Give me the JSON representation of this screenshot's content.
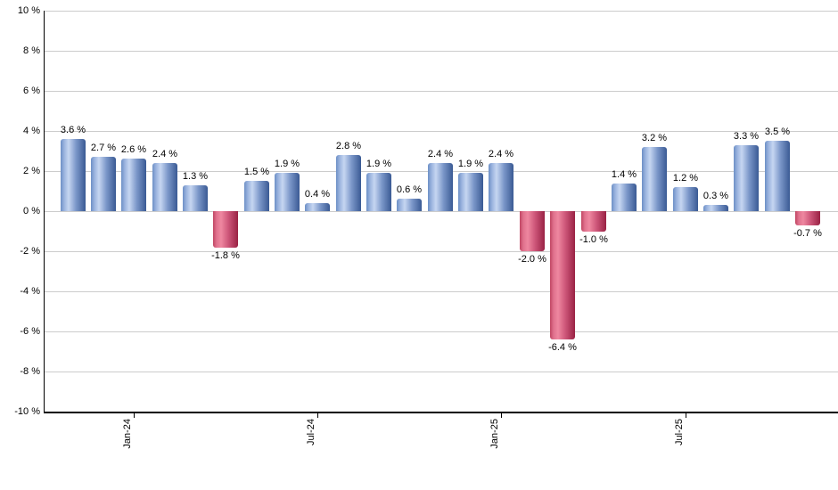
{
  "chart_data": {
    "type": "bar",
    "title": "",
    "xlabel": "",
    "ylabel": "",
    "ylim": [
      -10,
      10
    ],
    "grid": true,
    "legend": false,
    "y_ticks": [
      10,
      8,
      6,
      4,
      2,
      0,
      -2,
      -4,
      -6,
      -8,
      -10
    ],
    "y_tick_suffix": " %",
    "values": [
      3.6,
      2.7,
      2.6,
      2.4,
      1.3,
      -1.8,
      1.5,
      1.9,
      0.4,
      2.8,
      1.9,
      0.6,
      2.4,
      1.9,
      2.4,
      -2.0,
      -6.4,
      -1.0,
      1.4,
      3.2,
      1.2,
      0.3,
      3.3,
      3.5,
      -0.7
    ],
    "bar_labels": [
      "3.6 %",
      "2.7 %",
      "2.6 %",
      "2.4 %",
      "1.3 %",
      "-1.8 %",
      "1.5 %",
      "1.9 %",
      "0.4 %",
      "2.8 %",
      "1.9 %",
      "0.6 %",
      "2.4 %",
      "1.9 %",
      "2.4 %",
      "-2.0 %",
      "-6.4 %",
      "-1.0 %",
      "1.4 %",
      "3.2 %",
      "1.2 %",
      "0.3 %",
      "3.3 %",
      "3.5 %",
      "-0.7 %"
    ],
    "x_tick_labels": [
      {
        "index": 2,
        "label": "Jan-24"
      },
      {
        "index": 8,
        "label": "Jul-24"
      },
      {
        "index": 14,
        "label": "Jan-25"
      },
      {
        "index": 20,
        "label": "Jul-25"
      }
    ],
    "colors": {
      "positive_bar_gradient": [
        "#6c8fc6",
        "#9ab3de",
        "#c6d6f1",
        "#7b97c9",
        "#3a5a94"
      ],
      "negative_bar_gradient": [
        "#c04562",
        "#e0718d",
        "#ee87a0",
        "#cc5578",
        "#992244"
      ],
      "gridline": "#cccccc",
      "axis": "#000000",
      "label_text": "#000000",
      "background": "#ffffff"
    }
  }
}
